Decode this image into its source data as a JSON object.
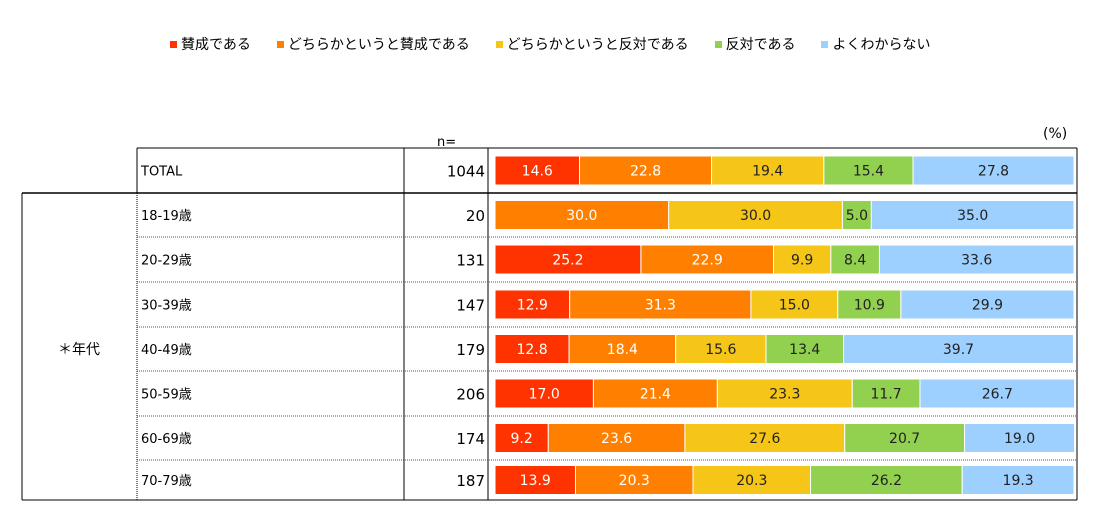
{
  "colors": {
    "bg": "#ffffff",
    "border": "#000000",
    "dotted": "#555555",
    "series": [
      "#ff3300",
      "#ff8000",
      "#f5c518",
      "#92d050",
      "#9dcfff"
    ]
  },
  "n_label": "n=",
  "unit_label": "(%)",
  "group_label": "＊年代",
  "chart_data": {
    "type": "bar",
    "orientation": "horizontal",
    "stacked": true,
    "normalized": true,
    "unit": "%",
    "xlim": [
      0,
      100
    ],
    "categories": [
      "TOTAL",
      "18-19歳",
      "20-29歳",
      "30-39歳",
      "40-49歳",
      "50-59歳",
      "60-69歳",
      "70-79歳"
    ],
    "n": [
      "1044",
      "20",
      "131",
      "147",
      "179",
      "206",
      "174",
      "187"
    ],
    "series": [
      {
        "name": "賛成である",
        "values": [
          14.6,
          0,
          25.2,
          12.9,
          12.8,
          17.0,
          9.2,
          13.9
        ]
      },
      {
        "name": "どちらかというと賛成である",
        "values": [
          22.8,
          30.0,
          22.9,
          31.3,
          18.4,
          21.4,
          23.6,
          20.3
        ]
      },
      {
        "name": "どちらかというと反対である",
        "values": [
          19.4,
          30.0,
          9.9,
          15.0,
          15.6,
          23.3,
          27.6,
          20.3
        ]
      },
      {
        "name": "反対である",
        "values": [
          15.4,
          5.0,
          8.4,
          10.9,
          13.4,
          11.7,
          20.7,
          26.2
        ]
      },
      {
        "name": "よくわからない",
        "values": [
          27.8,
          35.0,
          33.6,
          29.9,
          39.7,
          26.7,
          19.0,
          19.3
        ]
      }
    ]
  }
}
